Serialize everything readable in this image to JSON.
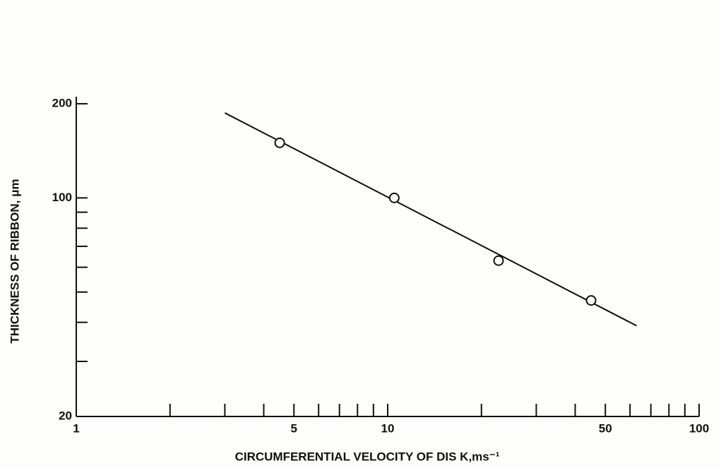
{
  "chart_data": {
    "type": "scatter",
    "xlabel": "CIRCUMFERENTIAL VELOCITY OF DIS K,ms⁻¹",
    "ylabel": "THICKNESS OF RIBBON, μm",
    "x": [
      4.5,
      10.5,
      22.7,
      45
    ],
    "values": [
      150,
      100,
      63,
      47
    ],
    "fit_line": {
      "x": [
        3,
        63
      ],
      "values": [
        187,
        39
      ]
    },
    "color": "#111111",
    "xscale": "log",
    "yscale": "log",
    "xlim": [
      1,
      100
    ],
    "ylim": [
      20,
      200
    ],
    "xticks": [
      1,
      5,
      10,
      50,
      100
    ],
    "xminor_ticks": [
      2,
      3,
      4,
      6,
      7,
      8,
      9,
      20,
      30,
      40,
      60,
      70,
      80,
      90
    ],
    "yticks": [
      20,
      100,
      200
    ],
    "yminor_ticks": [
      30,
      40,
      50,
      60,
      70,
      80,
      90
    ]
  }
}
